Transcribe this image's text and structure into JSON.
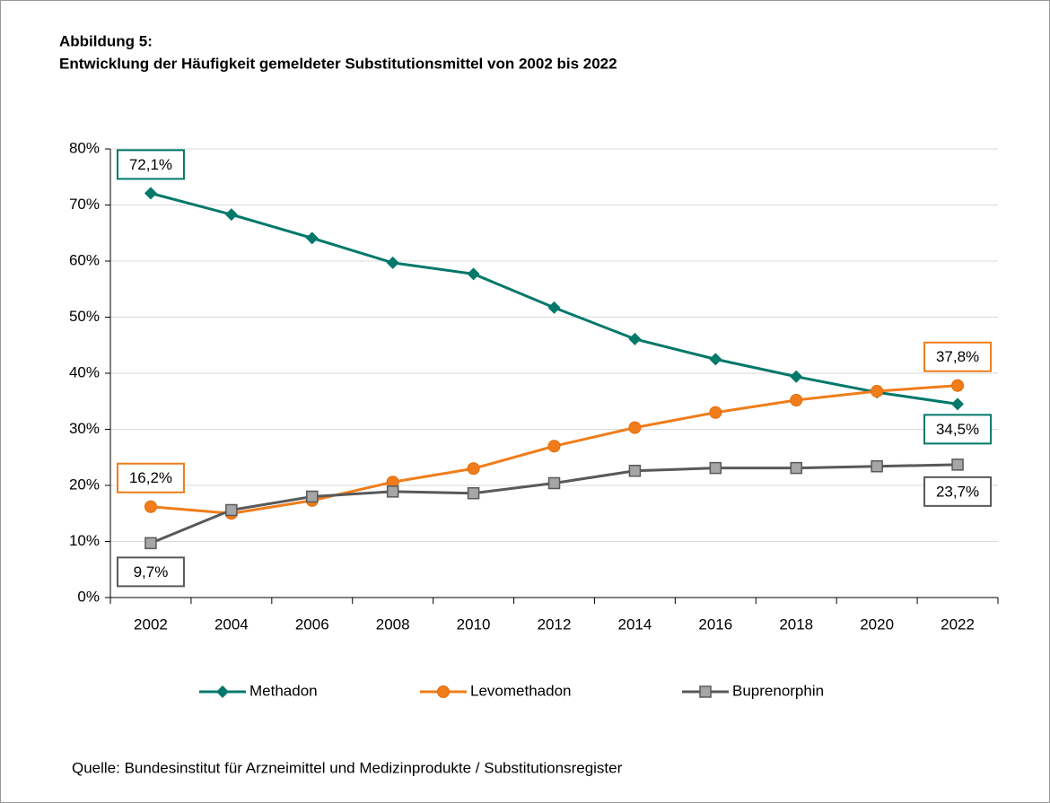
{
  "chart_data": {
    "type": "line",
    "title": "Abbildung 5:",
    "subtitle": "Entwicklung der Häufigkeit gemeldeter Substitutionsmittel von 2002 bis 2022",
    "source": "Quelle: Bundesinstitut für Arzneimittel und Medizinprodukte / Substitutionsregister",
    "categories": [
      "2002",
      "2004",
      "2006",
      "2008",
      "2010",
      "2012",
      "2014",
      "2016",
      "2018",
      "2020",
      "2022"
    ],
    "series": [
      {
        "name": "Methadon",
        "color": "#00786a",
        "marker": "diamond",
        "values": [
          72.1,
          68.3,
          64.1,
          59.7,
          57.7,
          51.7,
          46.1,
          42.5,
          39.4,
          36.6,
          34.5
        ],
        "value_labels": [
          "72,1%",
          null,
          null,
          null,
          null,
          null,
          null,
          null,
          null,
          null,
          "34,5%"
        ]
      },
      {
        "name": "Levomethadon",
        "color": "#f07d1a",
        "marker": "circle",
        "values": [
          16.2,
          15.0,
          17.3,
          20.6,
          23.0,
          27.0,
          30.3,
          33.0,
          35.2,
          36.8,
          37.8
        ],
        "value_labels": [
          "16,2%",
          null,
          null,
          null,
          null,
          null,
          null,
          null,
          null,
          null,
          "37,8%"
        ]
      },
      {
        "name": "Buprenorphin",
        "color": "#595959",
        "marker": "square",
        "values": [
          9.7,
          15.6,
          18.0,
          18.9,
          18.6,
          20.4,
          22.6,
          23.1,
          23.1,
          23.4,
          23.7
        ],
        "value_labels": [
          "9,7%",
          null,
          null,
          null,
          null,
          null,
          null,
          null,
          null,
          null,
          "23,7%"
        ]
      }
    ],
    "ylim": [
      0,
      80
    ],
    "yticks": [
      {
        "value": 0,
        "label": "0%"
      },
      {
        "value": 10,
        "label": "10%"
      },
      {
        "value": 20,
        "label": "20%"
      },
      {
        "value": 30,
        "label": "30%"
      },
      {
        "value": 40,
        "label": "40%"
      },
      {
        "value": 50,
        "label": "50%"
      },
      {
        "value": 60,
        "label": "60%"
      },
      {
        "value": 70,
        "label": "70%"
      },
      {
        "value": 80,
        "label": "80%"
      }
    ],
    "grid": true,
    "legend": "bottom"
  }
}
